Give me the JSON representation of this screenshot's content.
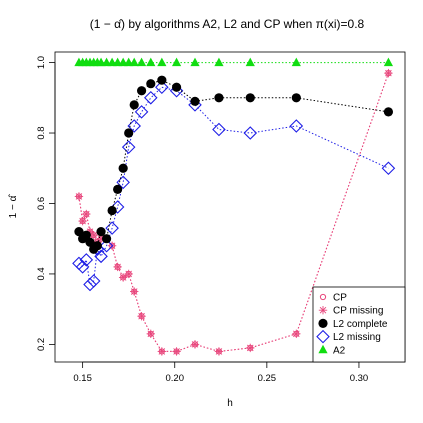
{
  "chart_data": {
    "type": "scatter",
    "title": "(1 − α̂) by algorithms A2, L2 and CP when π(xi)=0.8",
    "xlabel": "h",
    "ylabel": "1 − α̂",
    "xlim": [
      0.135,
      0.325
    ],
    "ylim": [
      0.15,
      1.03
    ],
    "x_ticks": [
      "0.15",
      "0.20",
      "0.25",
      "0.30"
    ],
    "y_ticks": [
      "0.2",
      "0.4",
      "0.6",
      "0.8",
      "1.0"
    ],
    "legend_position": "bottom-right",
    "series": [
      {
        "name": "CP",
        "marker": "small-open-circle",
        "line": "dotted",
        "color": "#e8467c",
        "x": [
          0.148,
          0.15,
          0.152,
          0.154,
          0.156,
          0.158,
          0.16,
          0.163,
          0.166,
          0.169,
          0.172,
          0.175,
          0.178,
          0.182,
          0.187,
          0.193,
          0.201,
          0.211,
          0.224,
          0.241,
          0.266,
          0.316
        ],
        "y": [
          0.62,
          0.55,
          0.57,
          0.52,
          0.51,
          0.49,
          0.5,
          0.5,
          0.48,
          0.42,
          0.39,
          0.4,
          0.35,
          0.28,
          0.23,
          0.18,
          0.18,
          0.2,
          0.18,
          0.19,
          0.23,
          0.97
        ]
      },
      {
        "name": "CP missing",
        "marker": "star",
        "line": "dotted",
        "color": "#e8467c",
        "x": [
          0.148,
          0.15,
          0.152,
          0.154,
          0.156,
          0.158,
          0.16,
          0.163,
          0.166,
          0.169,
          0.172,
          0.175,
          0.178,
          0.182,
          0.187,
          0.193,
          0.201,
          0.211,
          0.224,
          0.241,
          0.266,
          0.316
        ],
        "y": [
          0.62,
          0.55,
          0.57,
          0.52,
          0.51,
          0.49,
          0.5,
          0.5,
          0.48,
          0.42,
          0.39,
          0.4,
          0.35,
          0.28,
          0.23,
          0.18,
          0.18,
          0.2,
          0.18,
          0.19,
          0.23,
          0.97
        ]
      },
      {
        "name": "L2 complete",
        "marker": "filled-circle",
        "line": "dotted",
        "color": "#000000",
        "x": [
          0.148,
          0.15,
          0.152,
          0.154,
          0.156,
          0.158,
          0.16,
          0.163,
          0.166,
          0.169,
          0.172,
          0.175,
          0.178,
          0.182,
          0.187,
          0.193,
          0.201,
          0.211,
          0.224,
          0.241,
          0.266,
          0.316
        ],
        "y": [
          0.52,
          0.5,
          0.51,
          0.49,
          0.47,
          0.48,
          0.52,
          0.5,
          0.58,
          0.64,
          0.7,
          0.8,
          0.88,
          0.92,
          0.94,
          0.95,
          0.93,
          0.89,
          0.9,
          0.9,
          0.9,
          0.86
        ]
      },
      {
        "name": "L2 missing",
        "marker": "open-diamond",
        "line": "dotted",
        "color": "#1e1ee6",
        "x": [
          0.148,
          0.15,
          0.152,
          0.154,
          0.156,
          0.158,
          0.16,
          0.163,
          0.166,
          0.169,
          0.172,
          0.175,
          0.178,
          0.182,
          0.187,
          0.193,
          0.201,
          0.211,
          0.224,
          0.241,
          0.266,
          0.316
        ],
        "y": [
          0.43,
          0.42,
          0.44,
          0.37,
          0.38,
          0.47,
          0.45,
          0.48,
          0.53,
          0.59,
          0.66,
          0.76,
          0.82,
          0.86,
          0.9,
          0.93,
          0.92,
          0.88,
          0.81,
          0.8,
          0.82,
          0.7
        ]
      },
      {
        "name": "A2",
        "marker": "filled-triangle",
        "line": "dotted",
        "color": "#10dd10",
        "x": [
          0.148,
          0.15,
          0.152,
          0.154,
          0.156,
          0.158,
          0.16,
          0.163,
          0.166,
          0.169,
          0.172,
          0.175,
          0.178,
          0.182,
          0.187,
          0.193,
          0.201,
          0.211,
          0.224,
          0.241,
          0.266,
          0.316
        ],
        "y": [
          1.0,
          1.0,
          1.0,
          1.0,
          1.0,
          1.0,
          1.0,
          1.0,
          1.0,
          1.0,
          1.0,
          1.0,
          1.0,
          1.0,
          1.0,
          1.0,
          1.0,
          1.0,
          1.0,
          1.0,
          1.0,
          1.0
        ]
      }
    ]
  }
}
